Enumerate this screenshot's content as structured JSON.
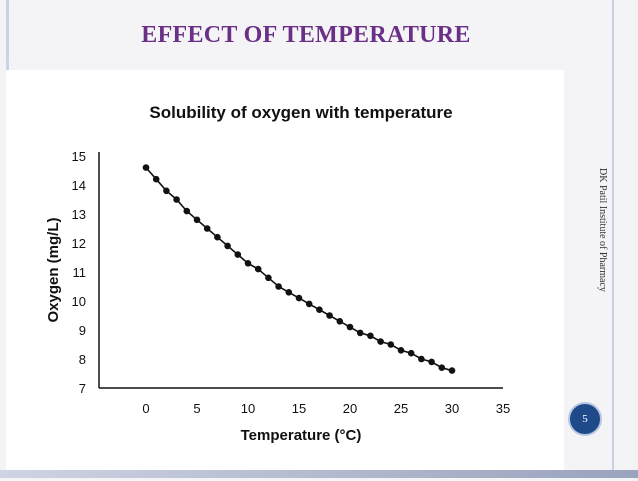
{
  "slide": {
    "title": "EFFECT OF TEMPERATURE",
    "footer": "DK Patil Institute of Pharmacy",
    "page_number": "5"
  },
  "chart_data": {
    "type": "scatter",
    "title": "Solubility of oxygen with temperature",
    "xlabel": "Temperature (°C)",
    "ylabel": "Oxygen (mg/L)",
    "xlim": [
      0,
      35
    ],
    "ylim": [
      7,
      15
    ],
    "xticks": [
      0,
      5,
      10,
      15,
      20,
      25,
      30,
      35
    ],
    "yticks": [
      7,
      8,
      9,
      10,
      11,
      12,
      13,
      14,
      15
    ],
    "grid": false,
    "x": [
      0,
      1,
      2,
      3,
      4,
      5,
      6,
      7,
      8,
      9,
      10,
      11,
      12,
      13,
      14,
      15,
      16,
      17,
      18,
      19,
      20,
      21,
      22,
      23,
      24,
      25,
      26,
      27,
      28,
      29,
      30
    ],
    "y": [
      14.6,
      14.2,
      13.8,
      13.5,
      13.1,
      12.8,
      12.5,
      12.2,
      11.9,
      11.6,
      11.3,
      11.1,
      10.8,
      10.5,
      10.3,
      10.1,
      9.9,
      9.7,
      9.5,
      9.3,
      9.1,
      8.9,
      8.8,
      8.6,
      8.5,
      8.3,
      8.2,
      8.0,
      7.9,
      7.7,
      7.6
    ],
    "colors": {
      "points": "#111111",
      "line": "#111111"
    }
  }
}
